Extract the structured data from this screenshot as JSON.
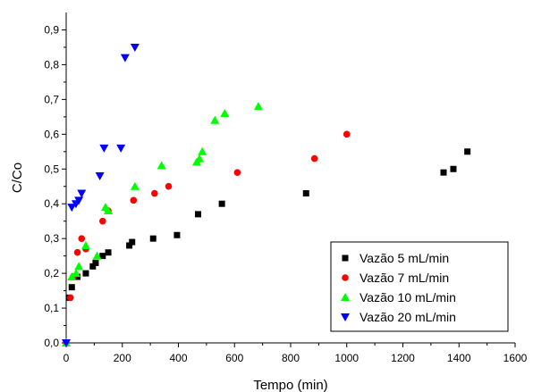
{
  "chart_data": {
    "type": "scatter",
    "xlabel": "Tempo (min)",
    "ylabel": "C/Co",
    "xlim": [
      0,
      1600
    ],
    "ylim": [
      0,
      0.95
    ],
    "xticks": [
      0,
      200,
      400,
      600,
      800,
      1000,
      1200,
      1400,
      1600
    ],
    "xtick_labels": [
      "0",
      "200",
      "400",
      "600",
      "800",
      "1000",
      "1200",
      "1400",
      "1600"
    ],
    "yticks": [
      0,
      0.1,
      0.2,
      0.3,
      0.4,
      0.5,
      0.6,
      0.7,
      0.8,
      0.9
    ],
    "ytick_labels": [
      "0,0",
      "0,1",
      "0,2",
      "0,3",
      "0,4",
      "0,5",
      "0,6",
      "0,7",
      "0,8",
      "0,9"
    ],
    "grid": false,
    "legend_position": "bottom-right",
    "series": [
      {
        "name": "Vazão 5 mL/min",
        "marker": "square",
        "color": "#000000",
        "points": [
          [
            0,
            0
          ],
          [
            10,
            0.13
          ],
          [
            20,
            0.16
          ],
          [
            40,
            0.19
          ],
          [
            70,
            0.2
          ],
          [
            95,
            0.22
          ],
          [
            105,
            0.23
          ],
          [
            130,
            0.25
          ],
          [
            150,
            0.26
          ],
          [
            225,
            0.28
          ],
          [
            235,
            0.29
          ],
          [
            310,
            0.3
          ],
          [
            395,
            0.31
          ],
          [
            470,
            0.37
          ],
          [
            555,
            0.4
          ],
          [
            855,
            0.43
          ],
          [
            1345,
            0.49
          ],
          [
            1380,
            0.5
          ],
          [
            1430,
            0.55
          ]
        ]
      },
      {
        "name": "Vazão 7 mL/min",
        "marker": "circle",
        "color": "#ff0000",
        "points": [
          [
            0,
            0
          ],
          [
            15,
            0.13
          ],
          [
            25,
            0.19
          ],
          [
            40,
            0.26
          ],
          [
            55,
            0.3
          ],
          [
            70,
            0.27
          ],
          [
            130,
            0.35
          ],
          [
            150,
            0.38
          ],
          [
            240,
            0.41
          ],
          [
            315,
            0.43
          ],
          [
            365,
            0.45
          ],
          [
            610,
            0.49
          ],
          [
            885,
            0.53
          ],
          [
            1000,
            0.6
          ]
        ]
      },
      {
        "name": "Vazão 10 mL/min",
        "marker": "triangle-up",
        "color": "#00ff00",
        "points": [
          [
            0,
            0
          ],
          [
            20,
            0.19
          ],
          [
            35,
            0.2
          ],
          [
            45,
            0.22
          ],
          [
            70,
            0.28
          ],
          [
            110,
            0.25
          ],
          [
            140,
            0.39
          ],
          [
            150,
            0.38
          ],
          [
            245,
            0.45
          ],
          [
            340,
            0.51
          ],
          [
            465,
            0.52
          ],
          [
            475,
            0.53
          ],
          [
            485,
            0.55
          ],
          [
            530,
            0.64
          ],
          [
            565,
            0.66
          ],
          [
            685,
            0.68
          ]
        ]
      },
      {
        "name": "Vazão 20 mL/min",
        "marker": "triangle-down",
        "color": "#0000ff",
        "points": [
          [
            0,
            0
          ],
          [
            20,
            0.39
          ],
          [
            35,
            0.4
          ],
          [
            45,
            0.41
          ],
          [
            55,
            0.43
          ],
          [
            120,
            0.48
          ],
          [
            135,
            0.56
          ],
          [
            195,
            0.56
          ],
          [
            210,
            0.82
          ],
          [
            245,
            0.85
          ]
        ]
      }
    ]
  }
}
